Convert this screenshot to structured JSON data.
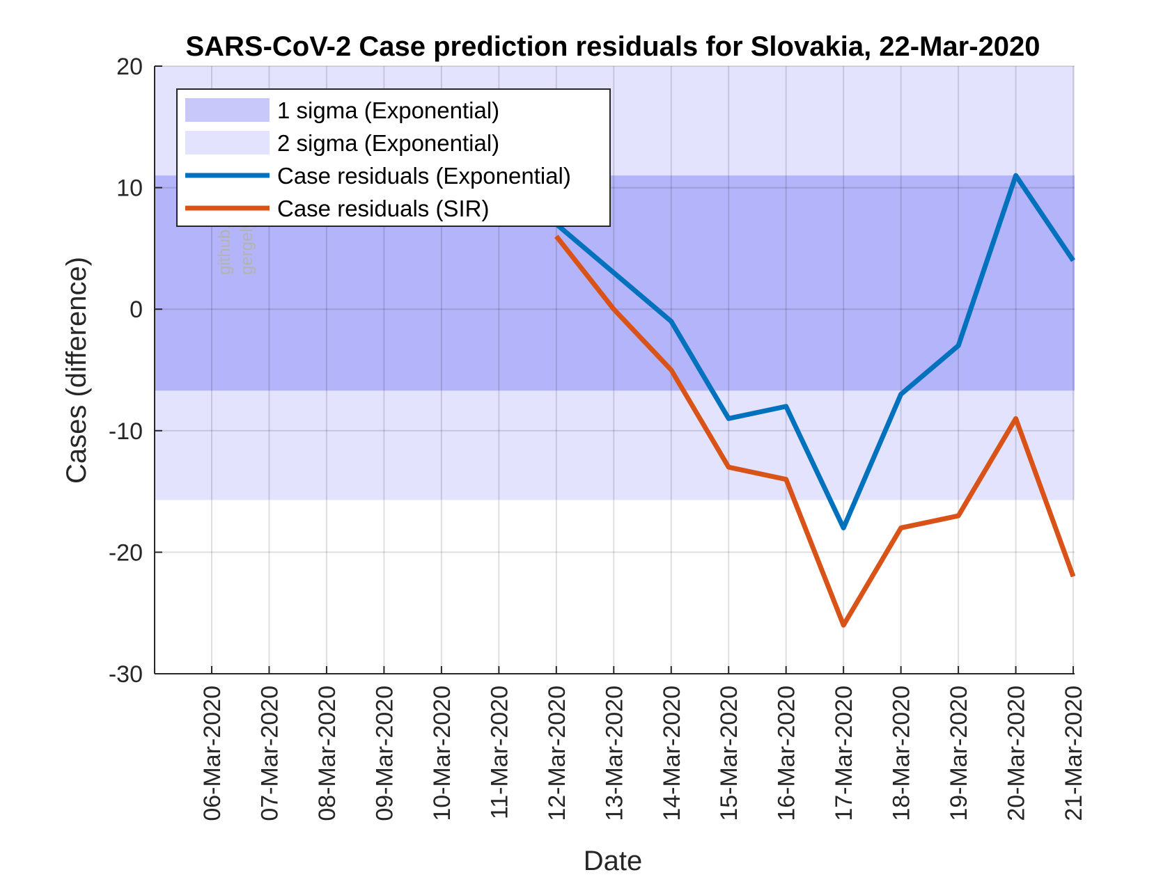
{
  "chart_data": {
    "type": "line",
    "title": "SARS-CoV-2 Case prediction residuals for Slovakia, 22-Mar-2020",
    "xlabel": "Date",
    "ylabel": "Cases (difference)",
    "ylim": [
      -30,
      20
    ],
    "yticks": [
      "20",
      "10",
      "0",
      "-10",
      "-20",
      "-30"
    ],
    "ytick_values": [
      20,
      10,
      0,
      -10,
      -20,
      -30
    ],
    "categories": [
      "06-Mar-2020",
      "07-Mar-2020",
      "08-Mar-2020",
      "09-Mar-2020",
      "10-Mar-2020",
      "11-Mar-2020",
      "12-Mar-2020",
      "13-Mar-2020",
      "14-Mar-2020",
      "15-Mar-2020",
      "16-Mar-2020",
      "17-Mar-2020",
      "18-Mar-2020",
      "19-Mar-2020",
      "20-Mar-2020",
      "21-Mar-2020"
    ],
    "grid": true,
    "legend_position": "top-left",
    "bands": [
      {
        "name": "2 sigma (Exponential)",
        "lower": -15.7,
        "upper": 20,
        "color": "#e3e3fd"
      },
      {
        "name": "1 sigma (Exponential)",
        "lower": -6.7,
        "upper": 11,
        "color": "#b4b4fa"
      }
    ],
    "series": [
      {
        "name": "Case residuals (Exponential)",
        "color": "#0072bd",
        "x": [
          "12-Mar-2020",
          "13-Mar-2020",
          "14-Mar-2020",
          "15-Mar-2020",
          "16-Mar-2020",
          "17-Mar-2020",
          "18-Mar-2020",
          "19-Mar-2020",
          "20-Mar-2020",
          "21-Mar-2020"
        ],
        "values": [
          7,
          3,
          -1,
          -9,
          -8,
          -18,
          -7,
          -3,
          11,
          4
        ]
      },
      {
        "name": "Case residuals (SIR)",
        "color": "#d95319",
        "x": [
          "12-Mar-2020",
          "13-Mar-2020",
          "14-Mar-2020",
          "15-Mar-2020",
          "16-Mar-2020",
          "17-Mar-2020",
          "18-Mar-2020",
          "19-Mar-2020",
          "20-Mar-2020",
          "21-Mar-2020"
        ],
        "values": [
          6,
          0,
          -5,
          -13,
          -14,
          -26,
          -18,
          -17,
          -9,
          -22
        ]
      }
    ],
    "legend": [
      {
        "label": "1 sigma (Exponential)",
        "kind": "patch",
        "color": "#c8c8fb"
      },
      {
        "label": "2 sigma (Exponential)",
        "kind": "patch",
        "color": "#e3e3fd"
      },
      {
        "label": "Case residuals (Exponential)",
        "kind": "line",
        "color": "#0072bd"
      },
      {
        "label": "Case residuals (SIR)",
        "kind": "line",
        "color": "#d95319"
      }
    ],
    "watermark": [
      "github.com/gerge...",
      "gergelytakacs/SK-C..."
    ]
  }
}
